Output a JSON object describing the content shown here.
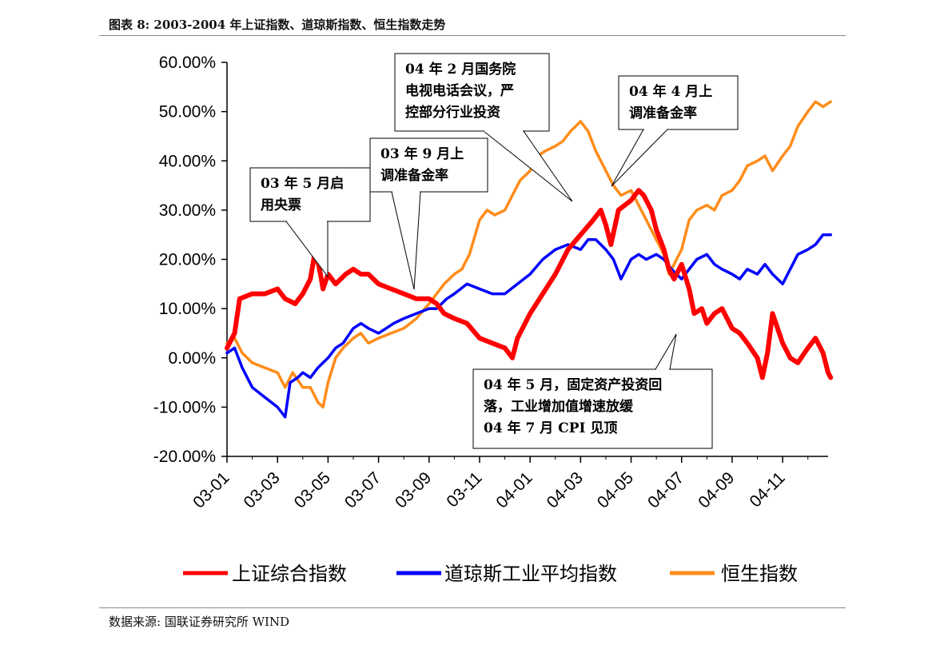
{
  "caption": "图表 8:     2003-2004 年上证指数、道琼斯指数、恒生指数走势",
  "source": "数据来源:  国联证券研究所  WIND",
  "colors": {
    "shanghai": "#ff0000",
    "dow": "#0000ff",
    "hangseng": "#ff8c1a"
  },
  "chart_data": {
    "type": "line",
    "ylim": [
      -20,
      60
    ],
    "yticks": [
      -20,
      -10,
      0,
      10,
      20,
      30,
      40,
      50,
      60
    ],
    "ytick_labels": [
      "-20.00%",
      "-10.00%",
      "0.00%",
      "10.00%",
      "20.00%",
      "30.00%",
      "40.00%",
      "50.00%",
      "60.00%"
    ],
    "xlim": [
      0,
      23.8
    ],
    "xticks": [
      0,
      2,
      4,
      6,
      8,
      10,
      12,
      14,
      16,
      18,
      20,
      22
    ],
    "xtick_labels": [
      "03-01",
      "03-03",
      "03-05",
      "03-07",
      "03-09",
      "03-11",
      "04-01",
      "04-03",
      "04-05",
      "04-07",
      "04-09",
      "04-11"
    ],
    "legend_position": "bottom",
    "grid": false,
    "series": [
      {
        "name": "上证综合指数",
        "color_key": "shanghai",
        "points": [
          [
            0,
            2
          ],
          [
            0.3,
            5
          ],
          [
            0.5,
            12
          ],
          [
            1,
            13
          ],
          [
            1.5,
            13
          ],
          [
            2,
            14
          ],
          [
            2.3,
            12
          ],
          [
            2.7,
            11
          ],
          [
            3,
            13
          ],
          [
            3.3,
            16
          ],
          [
            3.5,
            22
          ],
          [
            3.7,
            17
          ],
          [
            3.8,
            14
          ],
          [
            4,
            17
          ],
          [
            4.3,
            15
          ],
          [
            4.7,
            17
          ],
          [
            5,
            18
          ],
          [
            5.3,
            17
          ],
          [
            5.6,
            17
          ],
          [
            6,
            15
          ],
          [
            6.5,
            14
          ],
          [
            7,
            13
          ],
          [
            7.5,
            12
          ],
          [
            8,
            12
          ],
          [
            8.3,
            11
          ],
          [
            8.6,
            9
          ],
          [
            9,
            8
          ],
          [
            9.5,
            7
          ],
          [
            10,
            4
          ],
          [
            10.5,
            3
          ],
          [
            11,
            2
          ],
          [
            11.3,
            0
          ],
          [
            11.5,
            4
          ],
          [
            12,
            9
          ],
          [
            12.5,
            13
          ],
          [
            13,
            17
          ],
          [
            13.5,
            22
          ],
          [
            14,
            25
          ],
          [
            14.5,
            28
          ],
          [
            14.8,
            30
          ],
          [
            15,
            27
          ],
          [
            15.2,
            23
          ],
          [
            15.5,
            30
          ],
          [
            16,
            32
          ],
          [
            16.3,
            34
          ],
          [
            16.5,
            33
          ],
          [
            16.8,
            30
          ],
          [
            17,
            26
          ],
          [
            17.3,
            22
          ],
          [
            17.5,
            18
          ],
          [
            17.7,
            16
          ],
          [
            18,
            19
          ],
          [
            18.3,
            14
          ],
          [
            18.5,
            9
          ],
          [
            18.8,
            10
          ],
          [
            19,
            7
          ],
          [
            19.3,
            9
          ],
          [
            19.6,
            10
          ],
          [
            20,
            6
          ],
          [
            20.3,
            5
          ],
          [
            20.6,
            3
          ],
          [
            21,
            0
          ],
          [
            21.2,
            -4
          ],
          [
            21.4,
            1
          ],
          [
            21.6,
            9
          ],
          [
            22,
            3
          ],
          [
            22.3,
            0
          ],
          [
            22.6,
            -1
          ],
          [
            23,
            2
          ],
          [
            23.3,
            4
          ],
          [
            23.6,
            1
          ],
          [
            23.8,
            -3
          ],
          [
            23.9,
            -4
          ]
        ]
      },
      {
        "name": "道琼斯工业平均指数",
        "color_key": "dow",
        "points": [
          [
            0,
            1
          ],
          [
            0.3,
            2
          ],
          [
            0.6,
            -2
          ],
          [
            1,
            -6
          ],
          [
            1.5,
            -8
          ],
          [
            2,
            -10
          ],
          [
            2.3,
            -12
          ],
          [
            2.5,
            -5
          ],
          [
            2.8,
            -4
          ],
          [
            3,
            -3
          ],
          [
            3.3,
            -4
          ],
          [
            3.6,
            -2
          ],
          [
            4,
            0
          ],
          [
            4.3,
            2
          ],
          [
            4.6,
            3
          ],
          [
            5,
            6
          ],
          [
            5.3,
            7
          ],
          [
            5.6,
            6
          ],
          [
            6,
            5
          ],
          [
            6.3,
            6
          ],
          [
            6.6,
            7
          ],
          [
            7,
            8
          ],
          [
            7.5,
            9
          ],
          [
            8,
            10
          ],
          [
            8.3,
            10
          ],
          [
            8.7,
            12
          ],
          [
            9,
            13
          ],
          [
            9.5,
            15
          ],
          [
            10,
            14
          ],
          [
            10.5,
            13
          ],
          [
            11,
            13
          ],
          [
            11.5,
            15
          ],
          [
            12,
            17
          ],
          [
            12.5,
            20
          ],
          [
            13,
            22
          ],
          [
            13.5,
            23
          ],
          [
            14,
            22
          ],
          [
            14.3,
            24
          ],
          [
            14.6,
            24
          ],
          [
            15,
            22
          ],
          [
            15.3,
            20
          ],
          [
            15.6,
            16
          ],
          [
            16,
            20
          ],
          [
            16.3,
            21
          ],
          [
            16.6,
            20
          ],
          [
            17,
            21
          ],
          [
            17.3,
            20
          ],
          [
            17.6,
            18
          ],
          [
            18,
            16
          ],
          [
            18.3,
            18
          ],
          [
            18.6,
            20
          ],
          [
            19,
            21
          ],
          [
            19.3,
            19
          ],
          [
            19.6,
            18
          ],
          [
            20,
            17
          ],
          [
            20.3,
            16
          ],
          [
            20.6,
            18
          ],
          [
            21,
            17
          ],
          [
            21.3,
            19
          ],
          [
            21.6,
            17
          ],
          [
            22,
            15
          ],
          [
            22.3,
            18
          ],
          [
            22.6,
            21
          ],
          [
            23,
            22
          ],
          [
            23.3,
            23
          ],
          [
            23.6,
            25
          ],
          [
            23.9,
            25
          ]
        ]
      },
      {
        "name": "恒生指数",
        "color_key": "hangseng",
        "points": [
          [
            0,
            3
          ],
          [
            0.3,
            4
          ],
          [
            0.6,
            1
          ],
          [
            1,
            -1
          ],
          [
            1.5,
            -2
          ],
          [
            2,
            -3
          ],
          [
            2.3,
            -6
          ],
          [
            2.6,
            -3
          ],
          [
            3,
            -6
          ],
          [
            3.3,
            -6
          ],
          [
            3.6,
            -9
          ],
          [
            3.8,
            -10
          ],
          [
            4,
            -5
          ],
          [
            4.3,
            0
          ],
          [
            4.6,
            2
          ],
          [
            5,
            4
          ],
          [
            5.3,
            5
          ],
          [
            5.6,
            3
          ],
          [
            6,
            4
          ],
          [
            6.5,
            5
          ],
          [
            7,
            6
          ],
          [
            7.5,
            8
          ],
          [
            8,
            11
          ],
          [
            8.3,
            13
          ],
          [
            8.6,
            15
          ],
          [
            9,
            17
          ],
          [
            9.3,
            18
          ],
          [
            9.6,
            21
          ],
          [
            10,
            28
          ],
          [
            10.3,
            30
          ],
          [
            10.6,
            29
          ],
          [
            11,
            30
          ],
          [
            11.3,
            33
          ],
          [
            11.6,
            36
          ],
          [
            12,
            38
          ],
          [
            12.3,
            41
          ],
          [
            12.6,
            42
          ],
          [
            13,
            43
          ],
          [
            13.3,
            44
          ],
          [
            13.6,
            46
          ],
          [
            14,
            48
          ],
          [
            14.3,
            46
          ],
          [
            14.6,
            42
          ],
          [
            15,
            38
          ],
          [
            15.3,
            35
          ],
          [
            15.6,
            33
          ],
          [
            16,
            34
          ],
          [
            16.3,
            31
          ],
          [
            16.6,
            28
          ],
          [
            17,
            24
          ],
          [
            17.3,
            21
          ],
          [
            17.5,
            17
          ],
          [
            17.7,
            19
          ],
          [
            18,
            22
          ],
          [
            18.3,
            28
          ],
          [
            18.6,
            30
          ],
          [
            19,
            31
          ],
          [
            19.3,
            30
          ],
          [
            19.6,
            33
          ],
          [
            20,
            34
          ],
          [
            20.3,
            36
          ],
          [
            20.6,
            39
          ],
          [
            21,
            40
          ],
          [
            21.3,
            41
          ],
          [
            21.6,
            38
          ],
          [
            22,
            41
          ],
          [
            22.3,
            43
          ],
          [
            22.6,
            47
          ],
          [
            23,
            50
          ],
          [
            23.3,
            52
          ],
          [
            23.6,
            51
          ],
          [
            23.9,
            52
          ]
        ]
      }
    ]
  },
  "annotations": [
    {
      "lines": [
        "03 年 5 月启",
        "用央票"
      ]
    },
    {
      "lines": [
        "03 年 9 月上",
        "调准备金率"
      ]
    },
    {
      "lines": [
        "04 年 2 月国务院",
        "电视电话会议，严",
        "控部分行业投资"
      ]
    },
    {
      "lines": [
        "04 年 4 月上",
        "调准备金率"
      ]
    },
    {
      "lines": [
        "04 年 5 月，固定资产投资回",
        "落，工业增加值增速放缓",
        "04 年 7 月 CPI 见顶"
      ]
    }
  ]
}
